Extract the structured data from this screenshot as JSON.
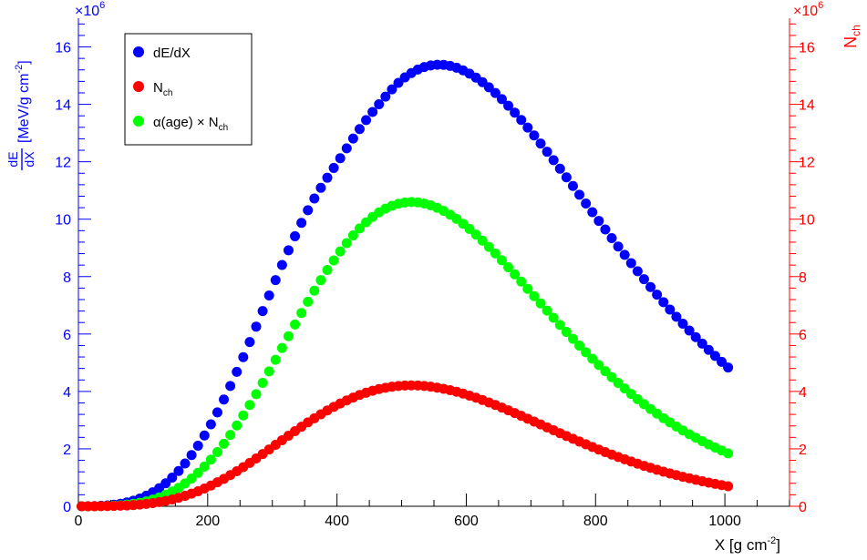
{
  "chart_data": {
    "type": "scatter",
    "xlabel_main": "X [g cm",
    "xlabel_sup": "-2",
    "xlabel_close": "]",
    "ylabel_frac_num": "dE",
    "ylabel_frac_den": "dX",
    "ylabel_unit": "[MeV/g cm",
    "ylabel_unit_sup": "-2",
    "ylabel_unit_close": "]",
    "y2label_main": "N",
    "y2label_sub": "ch",
    "left_exponent_base": "×10",
    "left_exponent_power": "6",
    "right_exponent_base": "×10",
    "right_exponent_power": "6",
    "xlim": [
      0,
      1100
    ],
    "ylim": [
      0,
      17
    ],
    "y2lim": [
      0,
      17
    ],
    "x_ticks": [
      "0",
      "200",
      "400",
      "600",
      "800",
      "1000"
    ],
    "y_ticks": [
      "0",
      "2",
      "4",
      "6",
      "8",
      "10",
      "12",
      "14",
      "16"
    ],
    "y2_ticks": [
      "0",
      "2",
      "4",
      "6",
      "8",
      "10",
      "12",
      "14",
      "16"
    ],
    "grid": false,
    "legend_position": "top-left",
    "legend": [
      {
        "text": "dE/dX",
        "sub": "",
        "prefix": "",
        "color": "#0000ff"
      },
      {
        "text": "N",
        "sub": "ch",
        "prefix": "",
        "color": "#ff0000"
      },
      {
        "text": "N",
        "sub": "ch",
        "prefix": "α(age) × ",
        "color": "#00ff00"
      }
    ],
    "series": [
      {
        "name": "dE/dX",
        "color": "#0000ff",
        "axis": "left",
        "x": [
          5,
          15,
          25,
          35,
          45,
          55,
          65,
          75,
          85,
          95,
          105,
          115,
          125,
          135,
          145,
          155,
          165,
          175,
          185,
          195,
          205,
          215,
          225,
          235,
          245,
          255,
          265,
          275,
          285,
          295,
          305,
          315,
          325,
          335,
          345,
          355,
          365,
          375,
          385,
          395,
          405,
          415,
          425,
          435,
          445,
          455,
          465,
          475,
          485,
          495,
          505,
          515,
          525,
          535,
          545,
          555,
          565,
          575,
          585,
          595,
          605,
          615,
          625,
          635,
          645,
          655,
          665,
          675,
          685,
          695,
          705,
          715,
          725,
          735,
          745,
          755,
          765,
          775,
          785,
          795,
          805,
          815,
          825,
          835,
          845,
          855,
          865,
          875,
          885,
          895,
          905,
          915,
          925,
          935,
          945,
          955,
          965,
          975,
          985,
          995,
          1005
        ],
        "y": [
          0.001,
          0.004,
          0.009,
          0.018,
          0.033,
          0.056,
          0.089,
          0.134,
          0.194,
          0.271,
          0.368,
          0.487,
          0.63,
          0.801,
          1.0,
          1.229,
          1.49,
          1.783,
          2.108,
          2.465,
          2.854,
          3.272,
          3.718,
          4.189,
          4.683,
          5.195,
          5.722,
          6.258,
          6.799,
          7.341,
          7.877,
          8.404,
          8.915,
          9.406,
          9.873,
          10.312,
          10.719,
          11.094,
          11.444,
          11.785,
          12.125,
          12.467,
          12.808,
          13.14,
          13.451,
          13.735,
          14.004,
          14.267,
          14.522,
          14.749,
          14.937,
          15.09,
          15.212,
          15.3,
          15.356,
          15.38,
          15.374,
          15.338,
          15.275,
          15.184,
          15.07,
          14.932,
          14.773,
          14.593,
          14.396,
          14.181,
          13.952,
          13.709,
          13.455,
          13.19,
          12.916,
          12.635,
          12.348,
          12.055,
          11.757,
          11.457,
          11.155,
          10.851,
          10.547,
          10.244,
          9.941,
          9.641,
          9.342,
          9.048,
          8.757,
          8.47,
          8.187,
          7.909,
          7.636,
          7.369,
          7.107,
          6.851,
          6.601,
          6.358,
          6.12,
          5.89,
          5.665,
          5.448,
          5.237,
          5.032,
          4.834
        ]
      },
      {
        "name": "N_ch",
        "color": "#ff0000",
        "axis": "right",
        "x": [
          5,
          15,
          25,
          35,
          45,
          55,
          65,
          75,
          85,
          95,
          105,
          115,
          125,
          135,
          145,
          155,
          165,
          175,
          185,
          195,
          205,
          215,
          225,
          235,
          245,
          255,
          265,
          275,
          285,
          295,
          305,
          315,
          325,
          335,
          345,
          355,
          365,
          375,
          385,
          395,
          405,
          415,
          425,
          435,
          445,
          455,
          465,
          475,
          485,
          495,
          505,
          515,
          525,
          535,
          545,
          555,
          565,
          575,
          585,
          595,
          605,
          615,
          625,
          635,
          645,
          655,
          665,
          675,
          685,
          695,
          705,
          715,
          725,
          735,
          745,
          755,
          765,
          775,
          785,
          795,
          805,
          815,
          825,
          835,
          845,
          855,
          865,
          875,
          885,
          895,
          905,
          915,
          925,
          935,
          945,
          955,
          965,
          975,
          985,
          995,
          1005
        ],
        "y": [
          0.0,
          0.001,
          0.002,
          0.004,
          0.007,
          0.012,
          0.019,
          0.029,
          0.042,
          0.06,
          0.083,
          0.111,
          0.146,
          0.188,
          0.238,
          0.296,
          0.363,
          0.439,
          0.524,
          0.619,
          0.722,
          0.835,
          0.956,
          1.085,
          1.221,
          1.364,
          1.512,
          1.665,
          1.821,
          1.98,
          2.14,
          2.301,
          2.46,
          2.617,
          2.771,
          2.921,
          3.066,
          3.205,
          3.338,
          3.463,
          3.58,
          3.688,
          3.787,
          3.876,
          3.955,
          4.024,
          4.082,
          4.129,
          4.165,
          4.191,
          4.206,
          4.211,
          4.205,
          4.19,
          4.166,
          4.133,
          4.092,
          4.043,
          3.987,
          3.924,
          3.855,
          3.781,
          3.701,
          3.617,
          3.529,
          3.438,
          3.344,
          3.248,
          3.15,
          3.05,
          2.95,
          2.849,
          2.748,
          2.647,
          2.547,
          2.448,
          2.35,
          2.254,
          2.159,
          2.066,
          1.975,
          1.887,
          1.801,
          1.717,
          1.636,
          1.558,
          1.482,
          1.409,
          1.339,
          1.271,
          1.206,
          1.144,
          1.085,
          1.028,
          0.974,
          0.922,
          0.872,
          0.825,
          0.781,
          0.738,
          0.698
        ]
      },
      {
        "name": "α(age) × N_ch",
        "color": "#00ff00",
        "axis": "left",
        "x": [
          5,
          15,
          25,
          35,
          45,
          55,
          65,
          75,
          85,
          95,
          105,
          115,
          125,
          135,
          145,
          155,
          165,
          175,
          185,
          195,
          205,
          215,
          225,
          235,
          245,
          255,
          265,
          275,
          285,
          295,
          305,
          315,
          325,
          335,
          345,
          355,
          365,
          375,
          385,
          395,
          405,
          415,
          425,
          435,
          445,
          455,
          465,
          475,
          485,
          495,
          505,
          515,
          525,
          535,
          545,
          555,
          565,
          575,
          585,
          595,
          605,
          615,
          625,
          635,
          645,
          655,
          665,
          675,
          685,
          695,
          705,
          715,
          725,
          735,
          745,
          755,
          765,
          775,
          785,
          795,
          805,
          815,
          825,
          835,
          845,
          855,
          865,
          875,
          885,
          895,
          905,
          915,
          925,
          935,
          945,
          955,
          965,
          975,
          985,
          995,
          1005
        ],
        "y": [
          0.0,
          0.001,
          0.003,
          0.007,
          0.013,
          0.023,
          0.037,
          0.058,
          0.086,
          0.123,
          0.172,
          0.234,
          0.31,
          0.403,
          0.514,
          0.644,
          0.795,
          0.968,
          1.164,
          1.382,
          1.624,
          1.889,
          2.177,
          2.486,
          2.815,
          3.163,
          3.527,
          3.906,
          4.297,
          4.697,
          5.103,
          5.513,
          5.923,
          6.33,
          6.732,
          7.125,
          7.508,
          7.876,
          8.229,
          8.563,
          8.877,
          9.168,
          9.435,
          9.676,
          9.891,
          10.078,
          10.236,
          10.366,
          10.467,
          10.539,
          10.582,
          10.597,
          10.585,
          10.547,
          10.484,
          10.397,
          10.288,
          10.158,
          10.009,
          9.842,
          9.66,
          9.463,
          9.254,
          9.034,
          8.805,
          8.568,
          8.325,
          8.078,
          7.827,
          7.574,
          7.32,
          7.067,
          6.815,
          6.564,
          6.316,
          6.072,
          5.832,
          5.596,
          5.365,
          5.14,
          4.92,
          4.706,
          4.498,
          4.297,
          4.102,
          3.913,
          3.731,
          3.556,
          3.388,
          3.226,
          3.07,
          2.921,
          2.778,
          2.641,
          2.511,
          2.386,
          2.267,
          2.153,
          2.045,
          1.942,
          1.844
        ]
      }
    ]
  }
}
